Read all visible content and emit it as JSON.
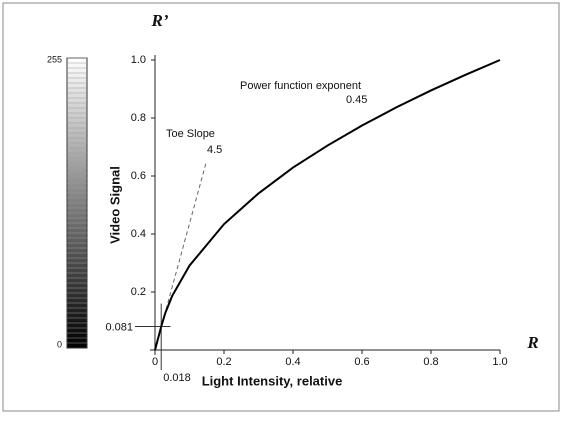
{
  "chart_data": {
    "type": "line",
    "y_axis_label": "Video Signal",
    "x_axis_label": "Light Intensity, relative",
    "y_symbol": "R’",
    "x_symbol": "R",
    "x": [
      0,
      0.01,
      0.018,
      0.03,
      0.05,
      0.1,
      0.2,
      0.3,
      0.4,
      0.5,
      0.6,
      0.7,
      0.8,
      0.9,
      1.0
    ],
    "values": [
      0,
      0.045,
      0.081,
      0.128,
      0.187,
      0.291,
      0.434,
      0.54,
      0.629,
      0.705,
      0.774,
      0.837,
      0.895,
      0.949,
      1.0
    ],
    "color": "#000000",
    "xlim": [
      0,
      1
    ],
    "ylim": [
      0,
      1
    ],
    "xticks": [
      0,
      {
        "value": 0.2,
        "label": "0.2"
      },
      {
        "value": 0.4,
        "label": "0.4"
      },
      {
        "value": 0.6,
        "label": "0.6"
      },
      {
        "value": 0.8,
        "label": "0.8"
      },
      {
        "value": 1,
        "label": "1.0"
      }
    ],
    "yticks": [
      {
        "value": 0.2,
        "label": "0.2"
      },
      {
        "value": 0.4,
        "label": "0.4"
      },
      {
        "value": 0.6,
        "label": "0.6"
      },
      {
        "value": 0.8,
        "label": "0.8"
      },
      {
        "value": 1,
        "label": "1.0"
      }
    ],
    "markers": {
      "x": {
        "value": 0.018,
        "label": "0.018"
      },
      "y": {
        "value": 0.081,
        "label": "0.081"
      }
    },
    "annotations": {
      "power_title": "Power function exponent",
      "power_value": "0.45",
      "toe_title": "Toe Slope",
      "toe_value": "4.5"
    },
    "grayscale": {
      "top": "255",
      "bottom": "0"
    }
  }
}
